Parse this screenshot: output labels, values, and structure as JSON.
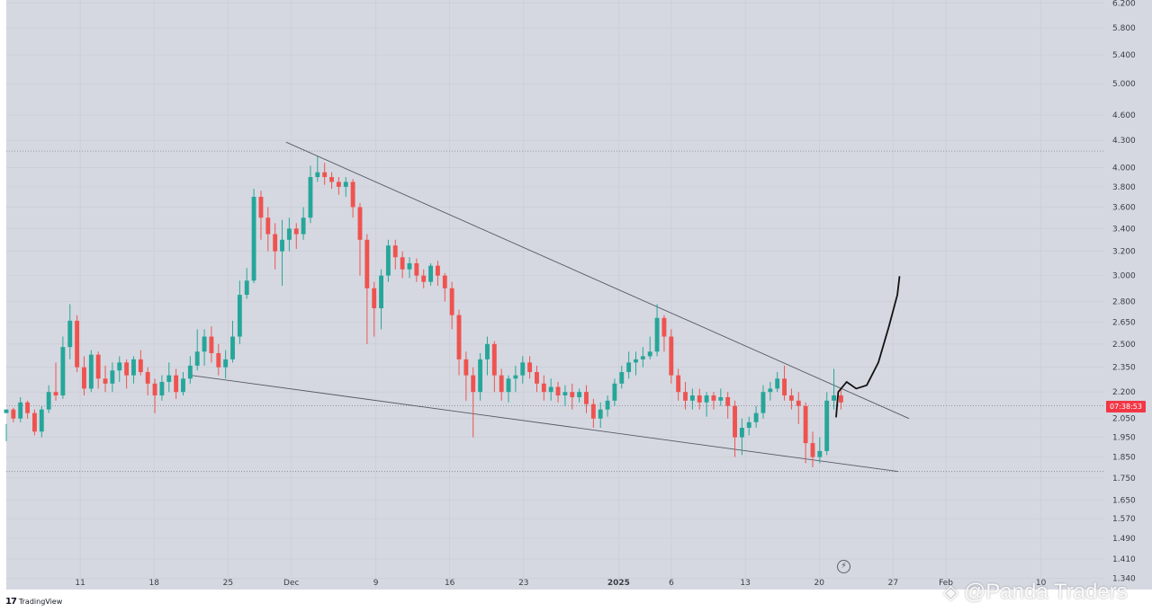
{
  "app": {
    "brand_logo": "17",
    "brand_name": "TradingView",
    "watermark_text": "@Panda Traders",
    "watermark_icon": "diamond-logo-icon",
    "bolt_icon": "⚡"
  },
  "price_badge": {
    "value": "07:38:53",
    "value_price": 2.12,
    "color": "#f23645"
  },
  "colors": {
    "plot_background": "#d5d8e0",
    "up": "#26a69a",
    "down": "#ef5350",
    "trendline": "#555a66",
    "grid": "#c9ccd4"
  },
  "chart_data": {
    "type": "candlestick",
    "title": "",
    "xlabel": "",
    "ylabel": "",
    "y_scale": "log",
    "ylim": [
      1.3,
      6.25
    ],
    "y_ticks": [
      "6.200",
      "5.800",
      "5.400",
      "5.000",
      "4.600",
      "4.300",
      "4.000",
      "3.800",
      "3.600",
      "3.400",
      "3.200",
      "3.000",
      "2.800",
      "2.650",
      "2.500",
      "2.350",
      "2.200",
      "2.050",
      "1.950",
      "1.850",
      "1.750",
      "1.650",
      "1.570",
      "1.490",
      "1.410",
      "1.340"
    ],
    "x_ticks": [
      {
        "label": "11",
        "day": 11
      },
      {
        "label": "18",
        "day": 18
      },
      {
        "label": "25",
        "day": 25
      },
      {
        "label": "Dec",
        "day": 31,
        "bold": false
      },
      {
        "label": "9",
        "day": 39
      },
      {
        "label": "16",
        "day": 46
      },
      {
        "label": "23",
        "day": 53
      },
      {
        "label": "2025",
        "day": 62,
        "bold": true
      },
      {
        "label": "6",
        "day": 67
      },
      {
        "label": "13",
        "day": 74
      },
      {
        "label": "20",
        "day": 81
      },
      {
        "label": "27",
        "day": 88
      },
      {
        "label": "Feb",
        "day": 93
      },
      {
        "label": "10",
        "day": 102
      }
    ],
    "candles": [
      [
        2.08,
        2.1,
        2.02,
        1.93
      ],
      [
        2.1,
        2.05,
        2.11,
        2.03
      ],
      [
        2.05,
        2.14,
        2.17,
        2.03
      ],
      [
        2.14,
        2.08,
        2.15,
        2.05
      ],
      [
        2.08,
        1.98,
        2.1,
        1.96
      ],
      [
        1.98,
        2.1,
        2.12,
        1.95
      ],
      [
        2.1,
        2.2,
        2.24,
        2.08
      ],
      [
        2.2,
        2.18,
        2.38,
        2.15
      ],
      [
        2.18,
        2.48,
        2.55,
        2.16
      ],
      [
        2.48,
        2.66,
        2.78,
        2.4
      ],
      [
        2.66,
        2.35,
        2.7,
        2.32
      ],
      [
        2.35,
        2.22,
        2.42,
        2.18
      ],
      [
        2.22,
        2.43,
        2.46,
        2.2
      ],
      [
        2.43,
        2.28,
        2.45,
        2.22
      ],
      [
        2.28,
        2.25,
        2.36,
        2.2
      ],
      [
        2.25,
        2.33,
        2.38,
        2.2
      ],
      [
        2.33,
        2.38,
        2.42,
        2.26
      ],
      [
        2.38,
        2.3,
        2.4,
        2.22
      ],
      [
        2.3,
        2.4,
        2.42,
        2.25
      ],
      [
        2.4,
        2.32,
        2.46,
        2.3
      ],
      [
        2.32,
        2.25,
        2.35,
        2.18
      ],
      [
        2.25,
        2.18,
        2.28,
        2.08
      ],
      [
        2.18,
        2.26,
        2.3,
        2.15
      ],
      [
        2.26,
        2.3,
        2.38,
        2.2
      ],
      [
        2.3,
        2.2,
        2.34,
        2.16
      ],
      [
        2.2,
        2.28,
        2.32,
        2.18
      ],
      [
        2.28,
        2.36,
        2.42,
        2.25
      ],
      [
        2.36,
        2.45,
        2.6,
        2.33
      ],
      [
        2.45,
        2.55,
        2.6,
        2.36
      ],
      [
        2.55,
        2.44,
        2.62,
        2.38
      ],
      [
        2.44,
        2.35,
        2.5,
        2.3
      ],
      [
        2.35,
        2.4,
        2.46,
        2.28
      ],
      [
        2.4,
        2.55,
        2.66,
        2.38
      ],
      [
        2.55,
        2.85,
        2.96,
        2.5
      ],
      [
        2.85,
        2.96,
        3.06,
        2.82
      ],
      [
        2.96,
        3.7,
        3.78,
        2.94
      ],
      [
        3.7,
        3.5,
        3.76,
        3.3
      ],
      [
        3.5,
        3.35,
        3.6,
        3.2
      ],
      [
        3.35,
        3.2,
        3.45,
        3.05
      ],
      [
        3.2,
        3.3,
        3.48,
        2.92
      ],
      [
        3.3,
        3.4,
        3.5,
        3.2
      ],
      [
        3.4,
        3.35,
        3.45,
        3.22
      ],
      [
        3.35,
        3.5,
        3.6,
        3.3
      ],
      [
        3.5,
        3.9,
        4.02,
        3.45
      ],
      [
        3.9,
        3.95,
        4.12,
        3.85
      ],
      [
        3.95,
        3.9,
        4.05,
        3.82
      ],
      [
        3.9,
        3.85,
        3.95,
        3.78
      ],
      [
        3.85,
        3.8,
        3.9,
        3.72
      ],
      [
        3.8,
        3.85,
        3.9,
        3.7
      ],
      [
        3.85,
        3.6,
        3.88,
        3.5
      ],
      [
        3.6,
        3.3,
        3.64,
        3.0
      ],
      [
        3.3,
        2.9,
        3.35,
        2.5
      ],
      [
        2.9,
        2.75,
        2.95,
        2.55
      ],
      [
        2.75,
        3.0,
        3.05,
        2.6
      ],
      [
        3.0,
        3.25,
        3.3,
        2.95
      ],
      [
        3.25,
        3.15,
        3.3,
        3.05
      ],
      [
        3.15,
        3.05,
        3.2,
        2.98
      ],
      [
        3.05,
        3.1,
        3.15,
        2.98
      ],
      [
        3.1,
        3.0,
        3.14,
        2.95
      ],
      [
        3.0,
        2.95,
        3.05,
        2.9
      ],
      [
        2.95,
        3.08,
        3.1,
        2.92
      ],
      [
        3.08,
        3.0,
        3.12,
        2.92
      ],
      [
        3.0,
        2.9,
        3.02,
        2.8
      ],
      [
        2.9,
        2.7,
        2.95,
        2.6
      ],
      [
        2.7,
        2.4,
        2.74,
        2.3
      ],
      [
        2.4,
        2.3,
        2.45,
        2.15
      ],
      [
        2.3,
        2.2,
        2.35,
        1.95
      ],
      [
        2.2,
        2.4,
        2.44,
        2.15
      ],
      [
        2.4,
        2.5,
        2.55,
        2.3
      ],
      [
        2.5,
        2.3,
        2.52,
        2.2
      ],
      [
        2.3,
        2.2,
        2.34,
        2.15
      ],
      [
        2.2,
        2.28,
        2.3,
        2.14
      ],
      [
        2.28,
        2.3,
        2.36,
        2.2
      ],
      [
        2.3,
        2.38,
        2.42,
        2.25
      ],
      [
        2.38,
        2.32,
        2.42,
        2.28
      ],
      [
        2.32,
        2.25,
        2.36,
        2.2
      ],
      [
        2.25,
        2.2,
        2.3,
        2.15
      ],
      [
        2.2,
        2.23,
        2.28,
        2.15
      ],
      [
        2.23,
        2.18,
        2.26,
        2.14
      ],
      [
        2.18,
        2.2,
        2.24,
        2.12
      ],
      [
        2.2,
        2.17,
        2.25,
        2.1
      ],
      [
        2.17,
        2.2,
        2.22,
        2.14
      ],
      [
        2.2,
        2.13,
        2.24,
        2.08
      ],
      [
        2.13,
        2.05,
        2.16,
        2.0
      ],
      [
        2.05,
        2.1,
        2.14,
        2.0
      ],
      [
        2.1,
        2.15,
        2.18,
        2.06
      ],
      [
        2.15,
        2.25,
        2.28,
        2.12
      ],
      [
        2.25,
        2.32,
        2.36,
        2.22
      ],
      [
        2.32,
        2.38,
        2.45,
        2.28
      ],
      [
        2.38,
        2.4,
        2.45,
        2.3
      ],
      [
        2.4,
        2.42,
        2.48,
        2.35
      ],
      [
        2.42,
        2.45,
        2.55,
        2.4
      ],
      [
        2.45,
        2.68,
        2.78,
        2.42
      ],
      [
        2.68,
        2.55,
        2.7,
        2.45
      ],
      [
        2.55,
        2.3,
        2.6,
        2.25
      ],
      [
        2.3,
        2.2,
        2.34,
        2.15
      ],
      [
        2.2,
        2.15,
        2.26,
        2.1
      ],
      [
        2.15,
        2.18,
        2.22,
        2.1
      ],
      [
        2.18,
        2.14,
        2.22,
        2.1
      ],
      [
        2.14,
        2.18,
        2.2,
        2.06
      ],
      [
        2.18,
        2.15,
        2.2,
        2.1
      ],
      [
        2.15,
        2.17,
        2.22,
        2.12
      ],
      [
        2.17,
        2.12,
        2.2,
        2.05
      ],
      [
        2.12,
        1.95,
        2.15,
        1.85
      ],
      [
        1.95,
        2.0,
        2.05,
        1.86
      ],
      [
        2.0,
        2.03,
        2.06,
        1.96
      ],
      [
        2.03,
        2.08,
        2.12,
        2.0
      ],
      [
        2.08,
        2.2,
        2.24,
        2.05
      ],
      [
        2.2,
        2.22,
        2.26,
        2.15
      ],
      [
        2.22,
        2.28,
        2.32,
        2.2
      ],
      [
        2.28,
        2.18,
        2.36,
        2.15
      ],
      [
        2.18,
        2.15,
        2.22,
        2.1
      ],
      [
        2.15,
        2.12,
        2.2,
        2.02
      ],
      [
        2.12,
        1.92,
        2.14,
        1.82
      ],
      [
        1.92,
        1.85,
        1.98,
        1.8
      ],
      [
        1.85,
        1.88,
        1.95,
        1.82
      ],
      [
        1.88,
        2.15,
        2.2,
        1.86
      ],
      [
        2.15,
        2.18,
        2.34,
        2.1
      ],
      [
        2.18,
        2.14,
        2.22,
        2.1
      ]
    ],
    "candle_x_start_day": 4,
    "candle_day_step": 0.67,
    "trendlines": [
      {
        "name": "upper-resistance",
        "from": {
          "day": 30.5,
          "price": 4.28
        },
        "to": {
          "day": 89.5,
          "price": 2.05
        }
      },
      {
        "name": "lower-support",
        "from": {
          "day": 21.5,
          "price": 2.3
        },
        "to": {
          "day": 88.5,
          "price": 1.78
        }
      }
    ],
    "projection_path": [
      {
        "day": 82.6,
        "price": 2.06
      },
      {
        "day": 82.8,
        "price": 2.2
      },
      {
        "day": 83.6,
        "price": 2.26
      },
      {
        "day": 84.5,
        "price": 2.22
      },
      {
        "day": 85.5,
        "price": 2.24
      },
      {
        "day": 86.6,
        "price": 2.38
      },
      {
        "day": 87.6,
        "price": 2.62
      },
      {
        "day": 88.4,
        "price": 2.85
      },
      {
        "day": 88.6,
        "price": 2.99
      }
    ],
    "horizontal_dotted_levels": [
      4.18,
      2.12,
      1.78
    ],
    "grid": true,
    "legend": "none"
  }
}
